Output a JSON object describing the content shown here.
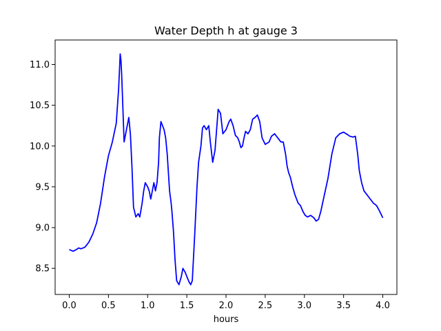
{
  "chart_data": {
    "type": "line",
    "title": "Water Depth h at gauge 3",
    "xlabel": "hours",
    "ylabel": "",
    "xlim": [
      -0.18,
      4.18
    ],
    "ylim": [
      8.18,
      11.3
    ],
    "xticks": [
      0.0,
      0.5,
      1.0,
      1.5,
      2.0,
      2.5,
      3.0,
      3.5,
      4.0
    ],
    "xtick_labels": [
      "0.0",
      "0.5",
      "1.0",
      "1.5",
      "2.0",
      "2.5",
      "3.0",
      "3.5",
      "4.0"
    ],
    "yticks": [
      8.5,
      9.0,
      9.5,
      10.0,
      10.5,
      11.0
    ],
    "ytick_labels": [
      "8.5",
      "9.0",
      "9.5",
      "10.0",
      "10.5",
      "11.0"
    ],
    "grid": false,
    "series": [
      {
        "color": "#0000ff",
        "x": [
          0.0,
          0.05,
          0.09,
          0.12,
          0.15,
          0.2,
          0.25,
          0.3,
          0.35,
          0.4,
          0.45,
          0.5,
          0.55,
          0.6,
          0.63,
          0.65,
          0.66,
          0.67,
          0.7,
          0.73,
          0.76,
          0.78,
          0.8,
          0.82,
          0.85,
          0.88,
          0.9,
          0.93,
          0.95,
          0.97,
          1.0,
          1.02,
          1.04,
          1.07,
          1.08,
          1.1,
          1.12,
          1.14,
          1.15,
          1.17,
          1.19,
          1.21,
          1.23,
          1.25,
          1.28,
          1.3,
          1.31,
          1.33,
          1.35,
          1.37,
          1.4,
          1.43,
          1.45,
          1.48,
          1.5,
          1.53,
          1.55,
          1.57,
          1.6,
          1.63,
          1.65,
          1.68,
          1.7,
          1.72,
          1.75,
          1.78,
          1.8,
          1.83,
          1.86,
          1.9,
          1.93,
          1.96,
          2.0,
          2.02,
          2.04,
          2.06,
          2.09,
          2.12,
          2.15,
          2.17,
          2.19,
          2.21,
          2.23,
          2.25,
          2.28,
          2.31,
          2.34,
          2.37,
          2.4,
          2.43,
          2.46,
          2.5,
          2.55,
          2.58,
          2.62,
          2.66,
          2.7,
          2.73,
          2.76,
          2.78,
          2.8,
          2.82,
          2.85,
          2.88,
          2.92,
          2.95,
          2.98,
          3.01,
          3.04,
          3.08,
          3.12,
          3.15,
          3.18,
          3.21,
          3.25,
          3.3,
          3.35,
          3.4,
          3.45,
          3.5,
          3.55,
          3.58,
          3.62,
          3.65,
          3.68,
          3.7,
          3.73,
          3.76,
          3.8,
          3.84,
          3.88,
          3.92,
          3.96,
          4.0
        ],
        "y": [
          8.73,
          8.71,
          8.73,
          8.75,
          8.74,
          8.76,
          8.82,
          8.92,
          9.06,
          9.3,
          9.62,
          9.88,
          10.05,
          10.28,
          10.7,
          11.13,
          11.05,
          10.85,
          10.05,
          10.2,
          10.35,
          10.15,
          9.75,
          9.25,
          9.13,
          9.17,
          9.13,
          9.3,
          9.45,
          9.55,
          9.5,
          9.45,
          9.35,
          9.5,
          9.55,
          9.45,
          9.55,
          9.8,
          10.1,
          10.3,
          10.25,
          10.2,
          10.1,
          9.9,
          9.45,
          9.3,
          9.2,
          8.95,
          8.6,
          8.35,
          8.3,
          8.4,
          8.5,
          8.45,
          8.4,
          8.33,
          8.3,
          8.35,
          8.9,
          9.5,
          9.8,
          10.0,
          10.22,
          10.25,
          10.2,
          10.25,
          10.05,
          9.8,
          9.95,
          10.45,
          10.4,
          10.15,
          10.2,
          10.25,
          10.3,
          10.33,
          10.25,
          10.13,
          10.1,
          10.05,
          9.98,
          10.0,
          10.1,
          10.18,
          10.15,
          10.2,
          10.33,
          10.35,
          10.38,
          10.3,
          10.1,
          10.02,
          10.05,
          10.12,
          10.15,
          10.1,
          10.05,
          10.05,
          9.9,
          9.75,
          9.67,
          9.62,
          9.5,
          9.4,
          9.3,
          9.27,
          9.2,
          9.15,
          9.13,
          9.15,
          9.12,
          9.08,
          9.1,
          9.2,
          9.38,
          9.6,
          9.9,
          10.1,
          10.15,
          10.17,
          10.14,
          10.12,
          10.11,
          10.12,
          9.9,
          9.7,
          9.55,
          9.45,
          9.4,
          9.35,
          9.3,
          9.27,
          9.2,
          9.12
        ]
      }
    ]
  }
}
